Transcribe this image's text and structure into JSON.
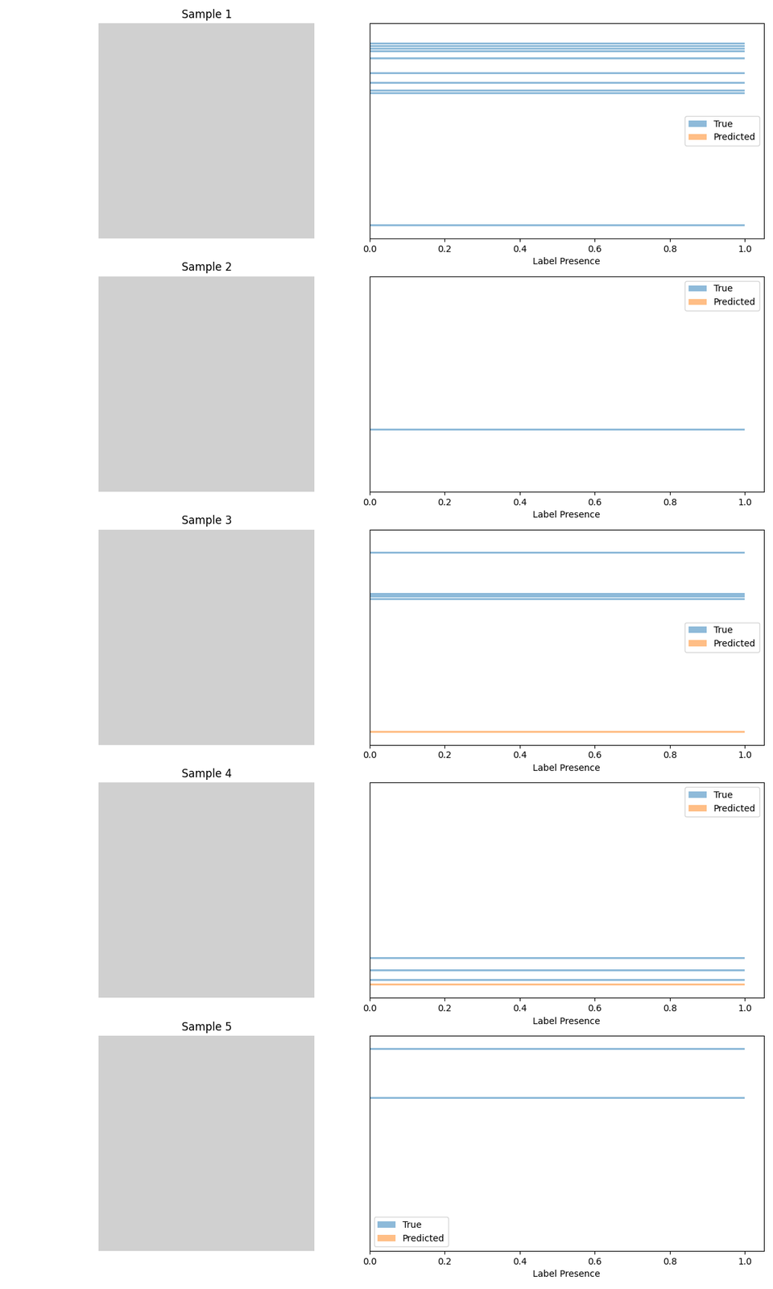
{
  "chart_data": [
    {
      "type": "bar",
      "title": "Sample 1",
      "orientation": "horizontal",
      "xlabel": "Label Presence",
      "xlim": [
        0.0,
        1.05
      ],
      "xticks": [
        0.0,
        0.2,
        0.4,
        0.6,
        0.8,
        1.0
      ],
      "ylim": [
        -4.39,
        83.39
      ],
      "tick_labels": "x",
      "legend": "center right",
      "series": [
        {
          "name": "True",
          "color": "#1f77b4",
          "y": [
            1,
            55,
            56,
            59,
            63,
            69,
            72,
            73,
            74,
            75
          ],
          "values": [
            1.0,
            1.0,
            1.0,
            1.0,
            1.0,
            1.0,
            1.0,
            1.0,
            1.0,
            1.0
          ]
        },
        {
          "name": "Predicted",
          "color": "#ff7f0e",
          "y": [],
          "values": []
        }
      ]
    },
    {
      "type": "bar",
      "title": "Sample 2",
      "orientation": "horizontal",
      "xlabel": "Label Presence",
      "xlim": [
        0.0,
        1.05
      ],
      "xticks": [
        0.0,
        0.2,
        0.4,
        0.6,
        0.8,
        1.0
      ],
      "ylim": [
        -4.39,
        83.39
      ],
      "tick_labels": "x",
      "legend": "upper right",
      "series": [
        {
          "name": "True",
          "color": "#1f77b4",
          "y": [
            21
          ],
          "values": [
            1.0
          ]
        },
        {
          "name": "Predicted",
          "color": "#ff7f0e",
          "y": [],
          "values": []
        }
      ]
    },
    {
      "type": "bar",
      "title": "Sample 3",
      "orientation": "horizontal",
      "xlabel": "Label Presence",
      "xlim": [
        0.0,
        1.05
      ],
      "xticks": [
        0.0,
        0.2,
        0.4,
        0.6,
        0.8,
        1.0
      ],
      "ylim": [
        -4.39,
        83.39
      ],
      "tick_labels": "x",
      "legend": "center right",
      "series": [
        {
          "name": "True",
          "color": "#1f77b4",
          "y": [
            55,
            56,
            57,
            74
          ],
          "values": [
            1.0,
            1.0,
            1.0,
            1.0
          ]
        },
        {
          "name": "Predicted",
          "color": "#ff7f0e",
          "y": [
            1
          ],
          "values": [
            1.0
          ]
        }
      ]
    },
    {
      "type": "bar",
      "title": "Sample 4",
      "orientation": "horizontal",
      "xlabel": "Label Presence",
      "xlim": [
        0.0,
        1.05
      ],
      "xticks": [
        0.0,
        0.2,
        0.4,
        0.6,
        0.8,
        1.0
      ],
      "ylim": [
        -4.39,
        83.39
      ],
      "tick_labels": "x",
      "legend": "upper right",
      "series": [
        {
          "name": "True",
          "color": "#1f77b4",
          "y": [
            3,
            7,
            12
          ],
          "values": [
            1.0,
            1.0,
            1.0
          ]
        },
        {
          "name": "Predicted",
          "color": "#ff7f0e",
          "y": [
            1
          ],
          "values": [
            1.0
          ]
        }
      ]
    },
    {
      "type": "bar",
      "title": "Sample 5",
      "orientation": "horizontal",
      "xlabel": "Label Presence",
      "xlim": [
        0.0,
        1.05
      ],
      "xticks": [
        0.0,
        0.2,
        0.4,
        0.6,
        0.8,
        1.0
      ],
      "ylim": [
        -4.39,
        83.39
      ],
      "tick_labels": "x",
      "legend": "lower left",
      "series": [
        {
          "name": "True",
          "color": "#1f77b4",
          "y": [
            58,
            78
          ],
          "values": [
            1.0,
            1.0
          ]
        },
        {
          "name": "Predicted",
          "color": "#ff7f0e",
          "y": [],
          "values": []
        }
      ]
    }
  ]
}
